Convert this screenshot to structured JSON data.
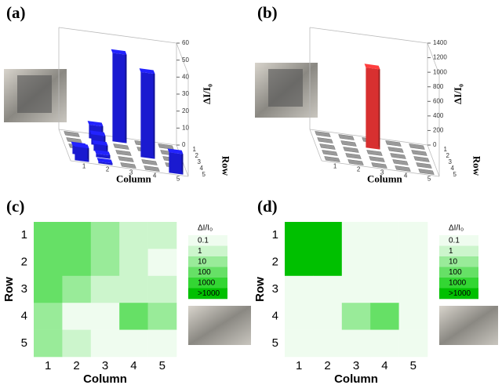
{
  "chart_data": [
    {
      "type": "bar3d",
      "panel_label": "(a)",
      "zlabel": "ΔI/I₀",
      "xlabel": "Column",
      "ylabel": "Row",
      "columns": [
        1,
        2,
        3,
        4,
        5
      ],
      "rows": [
        1,
        2,
        3,
        4,
        5
      ],
      "values": [
        [
          0,
          8,
          52,
          0,
          0
        ],
        [
          0,
          6,
          0,
          0,
          0
        ],
        [
          0,
          4,
          0,
          50,
          0
        ],
        [
          5,
          2,
          0,
          0,
          0
        ],
        [
          8,
          1,
          0,
          0,
          12
        ]
      ],
      "zlim": [
        0,
        60
      ],
      "zticks": [
        0,
        10,
        20,
        30,
        40,
        50,
        60
      ],
      "color": "#1a1ad0"
    },
    {
      "type": "bar3d",
      "panel_label": "(b)",
      "zlabel": "ΔI/I₀",
      "xlabel": "Column",
      "ylabel": "Row",
      "columns": [
        1,
        2,
        3,
        4,
        5
      ],
      "rows": [
        1,
        2,
        3,
        4,
        5
      ],
      "values": [
        [
          0,
          0,
          0,
          0,
          0
        ],
        [
          0,
          0,
          1100,
          0,
          0
        ],
        [
          0,
          0,
          0,
          0,
          0
        ],
        [
          0,
          0,
          0,
          0,
          0
        ],
        [
          0,
          0,
          0,
          0,
          0
        ]
      ],
      "zlim": [
        0,
        1400
      ],
      "zticks": [
        0,
        200,
        400,
        600,
        800,
        1000,
        1200,
        1400
      ],
      "color": "#d83030"
    },
    {
      "type": "heatmap",
      "panel_label": "(c)",
      "xlabel": "Column",
      "ylabel": "Row",
      "columns": [
        1,
        2,
        3,
        4,
        5
      ],
      "rows": [
        1,
        2,
        3,
        4,
        5
      ],
      "values": [
        [
          100,
          100,
          10,
          1,
          1
        ],
        [
          100,
          100,
          10,
          1,
          0.1
        ],
        [
          100,
          10,
          1,
          1,
          1
        ],
        [
          10,
          0.1,
          0.1,
          100,
          10
        ],
        [
          10,
          1,
          0.1,
          0.1,
          0.1
        ]
      ],
      "colorbar": {
        "title": "ΔI/I₀",
        "ticks": [
          0.1,
          1,
          10,
          100,
          1000,
          {
            "value": 10000,
            "label": ">1000"
          }
        ],
        "colors": [
          "#effcef",
          "#ccf5cc",
          "#99eb99",
          "#66e066",
          "#33d633",
          "#00c000"
        ]
      }
    },
    {
      "type": "heatmap",
      "panel_label": "(d)",
      "xlabel": "Column",
      "ylabel": "Row",
      "columns": [
        1,
        2,
        3,
        4,
        5
      ],
      "rows": [
        1,
        2,
        3,
        4,
        5
      ],
      "values": [
        [
          10000,
          10000,
          0.1,
          0.1,
          0.1
        ],
        [
          10000,
          10000,
          0.1,
          0.1,
          0.1
        ],
        [
          0.1,
          0.1,
          0.1,
          0.1,
          0.1
        ],
        [
          0.1,
          0.1,
          10,
          100,
          0.1
        ],
        [
          0.1,
          0.1,
          0.1,
          0.1,
          0.1
        ]
      ],
      "colorbar": {
        "title": "ΔI/I₀",
        "ticks": [
          0.1,
          1,
          10,
          100,
          1000,
          {
            "value": 10000,
            "label": ">1000"
          }
        ],
        "colors": [
          "#effcef",
          "#ccf5cc",
          "#99eb99",
          "#66e066",
          "#33d633",
          "#00c000"
        ]
      }
    }
  ]
}
